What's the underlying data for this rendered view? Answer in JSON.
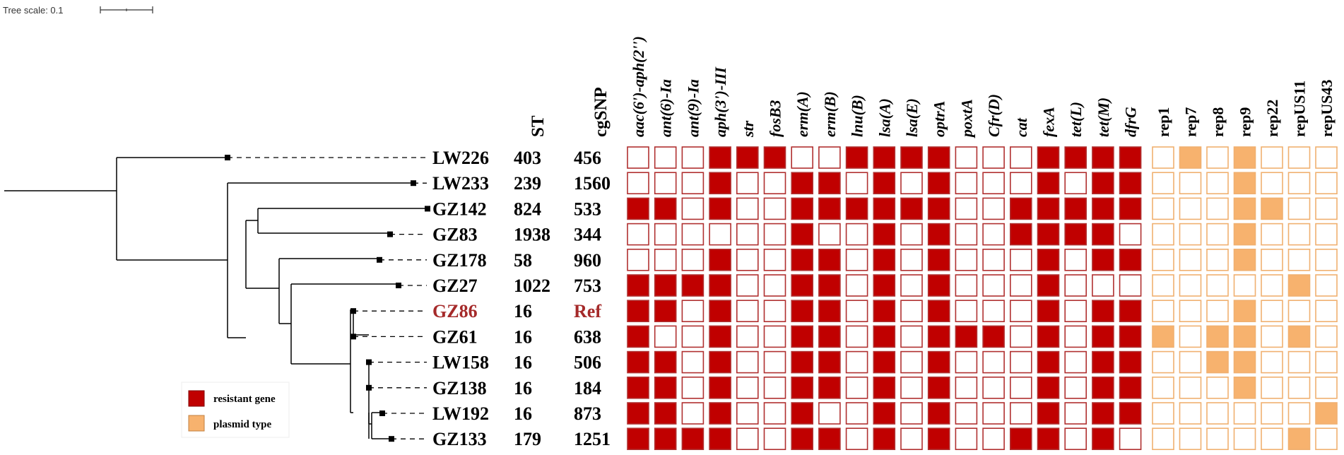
{
  "tree_scale": {
    "label": "Tree scale: 0.1"
  },
  "columns": {
    "st_header": "ST",
    "snp_header": "cgSNP",
    "resistance_genes": [
      "aac(6')-aph(2'')",
      "ant(6)-Ia",
      "ant(9)-Ia",
      "aph(3')-III",
      "str",
      "fosB3",
      "erm(A)",
      "erm(B)",
      "lnu(B)",
      "lsa(A)",
      "lsa(E)",
      "optrA",
      "poxtA",
      "Cfr(D)",
      "cat",
      "fexA",
      "tet(L)",
      "tet(M)",
      "dfrG"
    ],
    "plasmid_types": [
      "rep1",
      "rep7",
      "rep8",
      "rep9",
      "rep22",
      "repUS11",
      "repUS43"
    ]
  },
  "strains": [
    {
      "name": "LW226",
      "st": "403",
      "snp": "456"
    },
    {
      "name": "LW233",
      "st": "239",
      "snp": "1560"
    },
    {
      "name": "GZ142",
      "st": "824",
      "snp": "533"
    },
    {
      "name": "GZ83",
      "st": "1938",
      "snp": "344"
    },
    {
      "name": "GZ178",
      "st": "58",
      "snp": "960"
    },
    {
      "name": "GZ27",
      "st": "1022",
      "snp": "753"
    },
    {
      "name": "GZ86",
      "st": "16",
      "snp": "Ref",
      "reference": true
    },
    {
      "name": "GZ61",
      "st": "16",
      "snp": "638"
    },
    {
      "name": "LW158",
      "st": "16",
      "snp": "506"
    },
    {
      "name": "GZ138",
      "st": "16",
      "snp": "184"
    },
    {
      "name": "LW192",
      "st": "16",
      "snp": "873"
    },
    {
      "name": "GZ133",
      "st": "179",
      "snp": "1251"
    }
  ],
  "gene_matrix": [
    [
      0,
      0,
      0,
      1,
      1,
      1,
      0,
      0,
      1,
      1,
      1,
      1,
      0,
      0,
      0,
      1,
      1,
      1,
      1
    ],
    [
      0,
      0,
      0,
      1,
      0,
      0,
      1,
      1,
      0,
      1,
      0,
      1,
      0,
      0,
      0,
      1,
      0,
      1,
      1
    ],
    [
      1,
      1,
      0,
      1,
      0,
      0,
      1,
      1,
      1,
      1,
      1,
      1,
      0,
      0,
      1,
      1,
      1,
      1,
      1
    ],
    [
      0,
      0,
      0,
      0,
      0,
      0,
      1,
      0,
      0,
      1,
      0,
      1,
      0,
      0,
      1,
      1,
      1,
      1,
      0
    ],
    [
      0,
      0,
      0,
      1,
      0,
      0,
      1,
      1,
      0,
      1,
      0,
      1,
      0,
      0,
      0,
      1,
      0,
      1,
      1
    ],
    [
      1,
      1,
      1,
      1,
      0,
      0,
      1,
      1,
      0,
      1,
      0,
      1,
      0,
      0,
      0,
      1,
      0,
      0,
      0
    ],
    [
      1,
      1,
      0,
      1,
      0,
      0,
      1,
      1,
      0,
      1,
      0,
      1,
      0,
      0,
      0,
      1,
      0,
      1,
      1
    ],
    [
      1,
      0,
      0,
      1,
      0,
      0,
      1,
      1,
      0,
      1,
      0,
      1,
      1,
      1,
      0,
      1,
      0,
      1,
      1
    ],
    [
      1,
      1,
      0,
      1,
      0,
      0,
      1,
      1,
      0,
      1,
      0,
      1,
      0,
      0,
      0,
      1,
      0,
      1,
      1
    ],
    [
      1,
      1,
      0,
      1,
      0,
      0,
      1,
      1,
      0,
      1,
      0,
      1,
      0,
      0,
      0,
      1,
      0,
      1,
      1
    ],
    [
      1,
      1,
      0,
      1,
      0,
      0,
      1,
      0,
      0,
      1,
      0,
      1,
      0,
      0,
      0,
      1,
      0,
      1,
      1
    ],
    [
      1,
      1,
      1,
      1,
      0,
      0,
      1,
      1,
      0,
      1,
      0,
      1,
      0,
      0,
      1,
      1,
      0,
      1,
      0
    ]
  ],
  "plasmid_matrix": [
    [
      0,
      1,
      0,
      1,
      0,
      0,
      0
    ],
    [
      0,
      0,
      0,
      1,
      0,
      0,
      0
    ],
    [
      0,
      0,
      0,
      1,
      1,
      0,
      0
    ],
    [
      0,
      0,
      0,
      1,
      0,
      0,
      0
    ],
    [
      0,
      0,
      0,
      1,
      0,
      0,
      0
    ],
    [
      0,
      0,
      0,
      0,
      0,
      1,
      0
    ],
    [
      0,
      0,
      0,
      1,
      0,
      0,
      0
    ],
    [
      1,
      0,
      1,
      1,
      0,
      1,
      0
    ],
    [
      0,
      0,
      1,
      1,
      0,
      0,
      0
    ],
    [
      0,
      0,
      0,
      1,
      0,
      0,
      0
    ],
    [
      0,
      0,
      0,
      0,
      0,
      0,
      1
    ],
    [
      0,
      0,
      0,
      0,
      0,
      1,
      0
    ]
  ],
  "legend": [
    {
      "label": "resistant gene",
      "color": "#C00000"
    },
    {
      "label": "plasmid type",
      "color": "#F7B26E"
    }
  ],
  "colors": {
    "gene_fill": "#C00000",
    "gene_border": "#B03030",
    "plasmid_fill": "#F7B26E",
    "plasmid_border": "#F0B070",
    "reference_text": "#A52A2A",
    "tree": "#000000"
  }
}
